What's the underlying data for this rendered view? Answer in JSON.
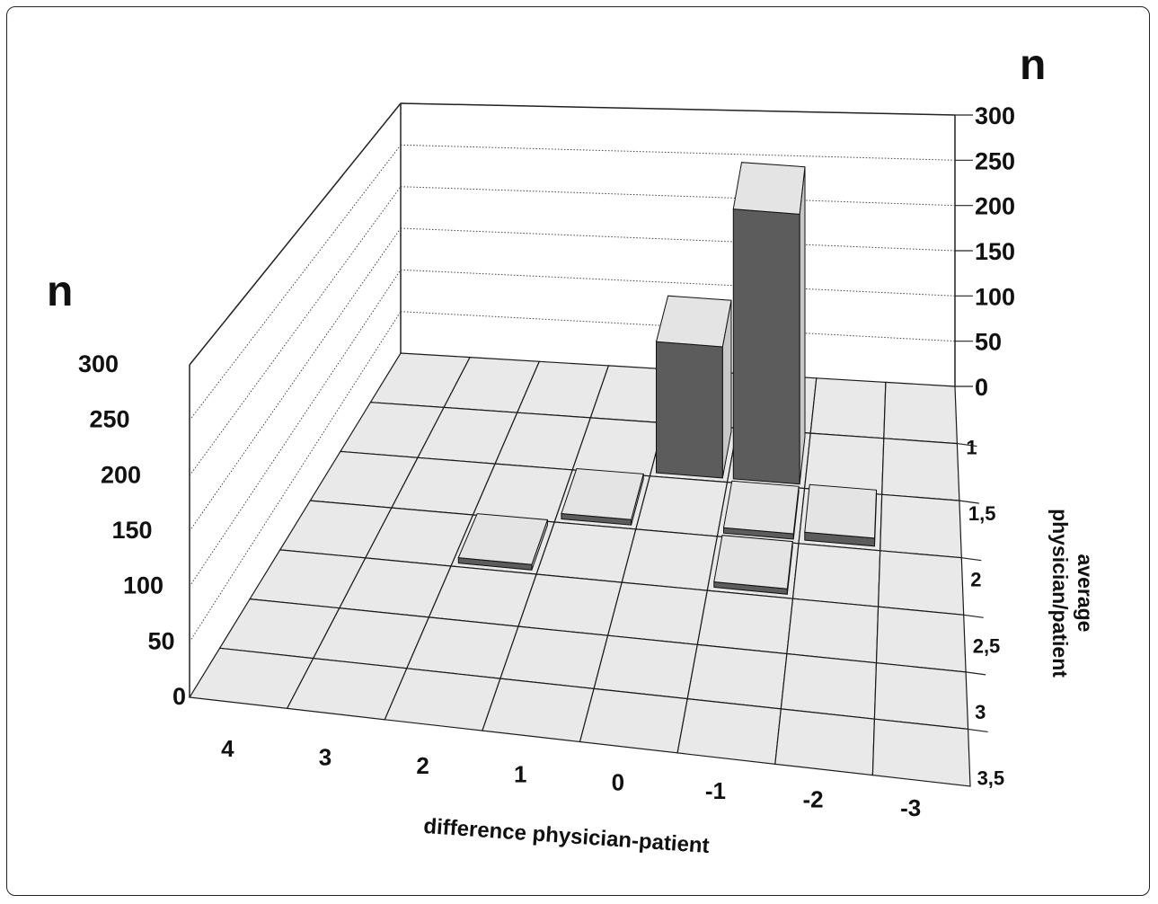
{
  "chart_data": {
    "type": "bar3d",
    "title": "",
    "x_label": "difference physician-patient",
    "x_categories": [
      "4",
      "3",
      "2",
      "1",
      "0",
      "-1",
      "-2",
      "-3"
    ],
    "y_label": "average physician/patient",
    "y_categories": [
      "1",
      "1,5",
      "2",
      "2,5",
      "3",
      "3,5"
    ],
    "z_label": "n",
    "z_ticks": [
      "0",
      "50",
      "100",
      "150",
      "200",
      "250",
      "300"
    ],
    "zlim": [
      0,
      300
    ],
    "grid": true,
    "bars": [
      {
        "x": "0",
        "y": "1",
        "value": 140
      },
      {
        "x": "-1",
        "y": "1",
        "value": 285
      },
      {
        "x": "1",
        "y": "1,5",
        "value": 3
      },
      {
        "x": "-2",
        "y": "1,5",
        "value": 8
      },
      {
        "x": "-1",
        "y": "1,5",
        "value": 5
      },
      {
        "x": "2",
        "y": "2",
        "value": 1
      },
      {
        "x": "-1",
        "y": "2",
        "value": 1
      }
    ],
    "colors": {
      "bar_front": "#5c5c5c",
      "bar_top": "#e4e4e4",
      "bar_side": "#c8c8c8",
      "floor": "#e9e9e9"
    }
  }
}
